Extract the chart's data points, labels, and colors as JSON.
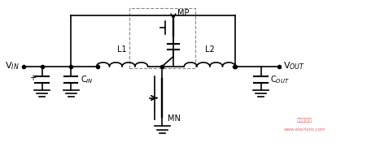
{
  "title": "",
  "bg_color": "#ffffff",
  "line_color": "#000000",
  "lw": 1.2,
  "fig_width": 4.52,
  "fig_height": 1.81,
  "labels": {
    "VIN": "V$_{IN}$",
    "VOUT": "V$_{OUT}$",
    "CIN": "C$_{IN}$",
    "COUT": "C$_{OUT}$",
    "L1": "L1",
    "L2": "L2",
    "MP": "MP",
    "MN": "MN"
  }
}
